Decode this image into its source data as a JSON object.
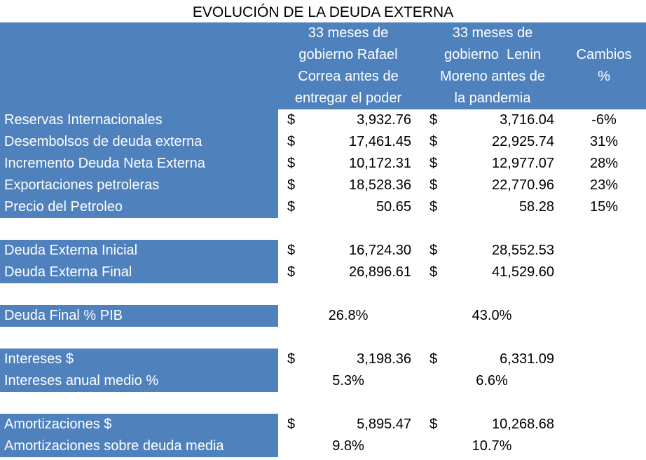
{
  "title": "EVOLUCIÓN DE LA DEUDA EXTERNA",
  "header": {
    "columns": [
      {
        "lines": [
          "33 meses de",
          "gobierno Rafael",
          "Correa antes de",
          "entregar el poder"
        ]
      },
      {
        "lines": [
          "33 meses de",
          "gobierno  Lenin",
          "Moreno antes de",
          "la pandemia"
        ]
      },
      {
        "lines": [
          "Cambios",
          "%"
        ]
      }
    ]
  },
  "groups": [
    [
      {
        "label": "Reservas Internacionales",
        "rafael": {
          "currency": "$",
          "amount": "3,932.76"
        },
        "lenin": {
          "currency": "$",
          "amount": "3,716.04"
        },
        "change": "-6%"
      },
      {
        "label": "Desembolsos de deuda externa",
        "rafael": {
          "currency": "$",
          "amount": "17,461.45"
        },
        "lenin": {
          "currency": "$",
          "amount": "22,925.74"
        },
        "change": "31%"
      },
      {
        "label": "Incremento Deuda Neta Externa",
        "rafael": {
          "currency": "$",
          "amount": "10,172.31"
        },
        "lenin": {
          "currency": "$",
          "amount": "12,977.07"
        },
        "change": "28%"
      },
      {
        "label": "Exportaciones petroleras",
        "rafael": {
          "currency": "$",
          "amount": "18,528.36"
        },
        "lenin": {
          "currency": "$",
          "amount": "22,770.96"
        },
        "change": "23%"
      },
      {
        "label": "Precio del Petroleo",
        "rafael": {
          "currency": "$",
          "amount": "50.65"
        },
        "lenin": {
          "currency": "$",
          "amount": "58.28"
        },
        "change": "15%"
      }
    ],
    [
      {
        "label": "Deuda Externa Inicial",
        "rafael": {
          "currency": "$",
          "amount": "16,724.30"
        },
        "lenin": {
          "currency": "$",
          "amount": "28,552.53"
        }
      },
      {
        "label": "Deuda Externa Final",
        "rafael": {
          "currency": "$",
          "amount": "26,896.61"
        },
        "lenin": {
          "currency": "$",
          "amount": "41,529.60"
        }
      }
    ],
    [
      {
        "label": "Deuda Final % PIB",
        "rafael": "26.8%",
        "lenin": "43.0%"
      }
    ],
    [
      {
        "label": "Intereses $",
        "rafael": {
          "currency": "$",
          "amount": "3,198.36"
        },
        "lenin": {
          "currency": "$",
          "amount": "6,331.09"
        }
      },
      {
        "label": "Intereses anual medio %",
        "rafael": "5.3%",
        "lenin": "6.6%"
      }
    ],
    [
      {
        "label": "Amortizaciones $",
        "rafael": {
          "currency": "$",
          "amount": "5,895.47"
        },
        "lenin": {
          "currency": "$",
          "amount": "10,268.68"
        }
      },
      {
        "label": "Amortizaciones sobre deuda media",
        "rafael": "9.8%",
        "lenin": "10.7%"
      }
    ]
  ]
}
